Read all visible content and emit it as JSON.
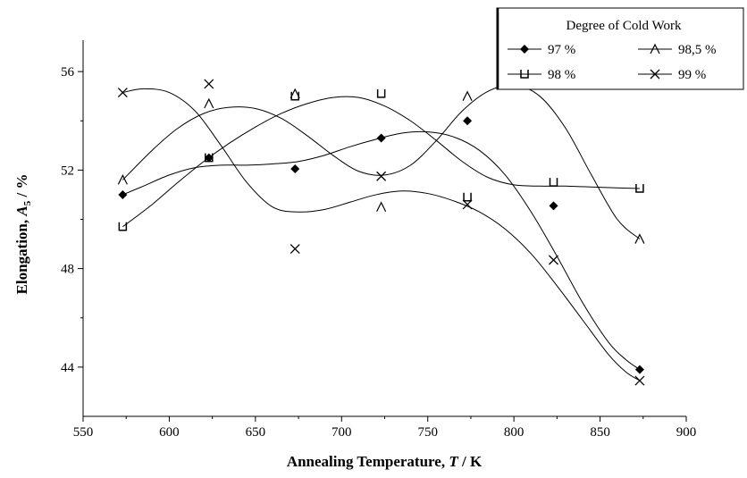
{
  "chart_data": {
    "type": "scatter",
    "xlabel_main": "Annealing Temperature,",
    "xlabel_var": "T",
    "xlabel_unit": " / K",
    "ylabel_main": "Elongation,",
    "ylabel_var": "A",
    "ylabel_sub": "5",
    "ylabel_unit": " / %",
    "xlim": [
      550,
      900
    ],
    "ylim": [
      42,
      58
    ],
    "xticks": [
      550,
      600,
      650,
      700,
      750,
      800,
      850,
      900
    ],
    "yticks": [
      44,
      48,
      52,
      56
    ],
    "legend": {
      "title": "Degree of Cold Work",
      "placement": "top-right"
    },
    "series": [
      {
        "name": "97 %",
        "marker": "diamond",
        "x": [
          573,
          623,
          673,
          723,
          773,
          823,
          873
        ],
        "y": [
          51.0,
          52.5,
          52.05,
          53.3,
          54.0,
          50.55,
          43.9
        ],
        "curve_x": [
          573,
          585,
          600,
          615,
          630,
          645,
          660,
          675,
          690,
          705,
          720,
          735,
          750,
          765,
          780,
          795,
          810,
          825,
          840,
          855,
          865,
          873
        ],
        "curve_y": [
          51.0,
          51.35,
          51.8,
          52.1,
          52.2,
          52.2,
          52.25,
          52.35,
          52.6,
          52.95,
          53.25,
          53.5,
          53.55,
          53.35,
          52.8,
          51.8,
          50.3,
          48.5,
          46.6,
          45.0,
          44.3,
          43.9
        ]
      },
      {
        "name": "98 %",
        "marker": "u",
        "x": [
          573,
          623,
          673,
          723,
          773,
          823,
          873
        ],
        "y": [
          49.7,
          52.5,
          55.0,
          55.1,
          50.9,
          51.5,
          51.25
        ],
        "curve_x": [
          573,
          590,
          605,
          620,
          635,
          650,
          665,
          680,
          695,
          710,
          725,
          740,
          755,
          770,
          785,
          800,
          815,
          830,
          850,
          873
        ],
        "curve_y": [
          49.7,
          50.6,
          51.5,
          52.35,
          53.1,
          53.75,
          54.3,
          54.7,
          54.95,
          54.95,
          54.6,
          54.0,
          53.2,
          52.35,
          51.7,
          51.4,
          51.35,
          51.35,
          51.3,
          51.25
        ]
      },
      {
        "name": "98,5 %",
        "marker": "caret",
        "x": [
          573,
          623,
          673,
          723,
          773,
          873
        ],
        "y": [
          51.6,
          54.7,
          55.1,
          50.5,
          55.0,
          49.2
        ],
        "curve_x": [
          573,
          590,
          605,
          620,
          635,
          650,
          665,
          680,
          695,
          710,
          725,
          740,
          755,
          770,
          785,
          800,
          815,
          830,
          845,
          860,
          873
        ],
        "curve_y": [
          51.6,
          52.8,
          53.7,
          54.3,
          54.55,
          54.5,
          54.1,
          53.4,
          52.6,
          51.95,
          51.8,
          52.2,
          53.2,
          54.4,
          55.2,
          55.45,
          55.0,
          53.7,
          51.8,
          50.0,
          49.2
        ]
      },
      {
        "name": "99 %",
        "marker": "x",
        "x": [
          573,
          623,
          673,
          723,
          773,
          823,
          873
        ],
        "y": [
          55.15,
          55.5,
          48.8,
          51.75,
          50.6,
          48.35,
          43.45
        ],
        "curve_x": [
          573,
          585,
          600,
          615,
          630,
          645,
          660,
          675,
          690,
          705,
          720,
          735,
          750,
          765,
          780,
          795,
          810,
          825,
          840,
          855,
          865,
          873
        ],
        "curve_y": [
          55.15,
          55.3,
          55.15,
          54.4,
          53.0,
          51.5,
          50.5,
          50.3,
          50.4,
          50.7,
          51.0,
          51.15,
          51.05,
          50.75,
          50.3,
          49.6,
          48.6,
          47.3,
          45.9,
          44.5,
          43.8,
          43.45
        ]
      }
    ]
  }
}
